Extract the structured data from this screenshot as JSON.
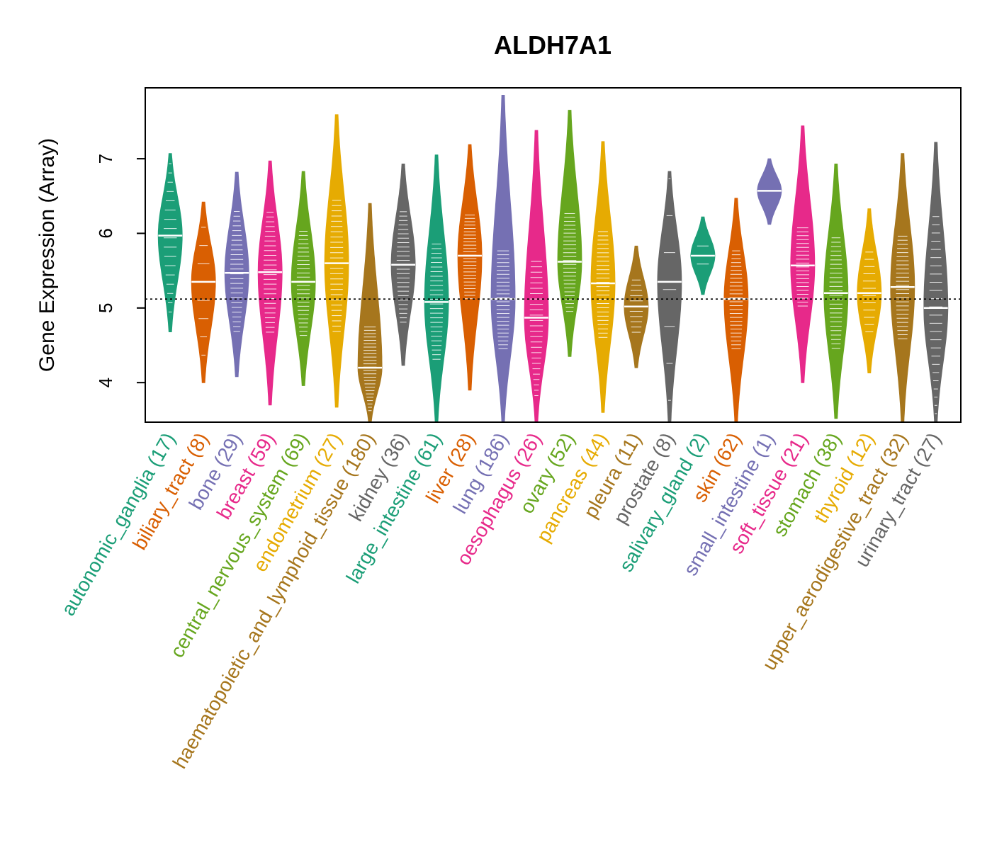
{
  "chart_data": {
    "type": "violin",
    "title": "ALDH7A1",
    "ylabel": "Gene Expression (Array)",
    "xlabel": "",
    "ylim": [
      3.47,
      7.95
    ],
    "yticks": [
      4,
      5,
      6,
      7
    ],
    "reference_line": 5.12,
    "grid": false,
    "categories": [
      {
        "name": "autonomic_ganglia",
        "n": 17,
        "color": "#1B9E77",
        "median": 5.97,
        "min": 4.68,
        "max": 7.07,
        "q1": 5.46,
        "q3": 6.42
      },
      {
        "name": "biliary_tract",
        "n": 8,
        "color": "#D95F02",
        "median": 5.35,
        "min": 4.0,
        "max": 6.42,
        "q1": 4.78,
        "q3": 5.67
      },
      {
        "name": "bone",
        "n": 29,
        "color": "#7570B3",
        "median": 5.47,
        "min": 4.08,
        "max": 6.82,
        "q1": 5.11,
        "q3": 5.87
      },
      {
        "name": "breast",
        "n": 59,
        "color": "#E7298A",
        "median": 5.48,
        "min": 3.7,
        "max": 6.97,
        "q1": 5.1,
        "q3": 5.86
      },
      {
        "name": "central_nervous_system",
        "n": 69,
        "color": "#66A61E",
        "median": 5.35,
        "min": 3.96,
        "max": 6.83,
        "q1": 5.0,
        "q3": 5.66
      },
      {
        "name": "endometrium",
        "n": 27,
        "color": "#E6AB02",
        "median": 5.6,
        "min": 3.67,
        "max": 7.59,
        "q1": 5.15,
        "q3": 5.98
      },
      {
        "name": "haematopoietic_and_lymphoid_tissue",
        "n": 180,
        "color": "#A6761D",
        "median": 4.2,
        "min": 3.47,
        "max": 6.4,
        "q1": 3.92,
        "q3": 4.45
      },
      {
        "name": "kidney",
        "n": 36,
        "color": "#666666",
        "median": 5.58,
        "min": 4.23,
        "max": 6.93,
        "q1": 5.2,
        "q3": 5.9
      },
      {
        "name": "large_intestine",
        "n": 61,
        "color": "#1B9E77",
        "median": 5.08,
        "min": 3.47,
        "max": 7.05,
        "q1": 4.72,
        "q3": 5.45
      },
      {
        "name": "liver",
        "n": 28,
        "color": "#D95F02",
        "median": 5.7,
        "min": 3.9,
        "max": 7.19,
        "q1": 5.42,
        "q3": 5.95
      },
      {
        "name": "lung",
        "n": 186,
        "color": "#7570B3",
        "median": 5.12,
        "min": 3.47,
        "max": 7.85,
        "q1": 4.8,
        "q3": 5.42
      },
      {
        "name": "oesophagus",
        "n": 26,
        "color": "#E7298A",
        "median": 4.87,
        "min": 3.47,
        "max": 7.38,
        "q1": 4.3,
        "q3": 5.15
      },
      {
        "name": "ovary",
        "n": 52,
        "color": "#66A61E",
        "median": 5.62,
        "min": 4.35,
        "max": 7.65,
        "q1": 5.3,
        "q3": 5.92
      },
      {
        "name": "pancreas",
        "n": 44,
        "color": "#E6AB02",
        "median": 5.33,
        "min": 3.6,
        "max": 7.23,
        "q1": 4.98,
        "q3": 5.65
      },
      {
        "name": "pleura",
        "n": 11,
        "color": "#A6761D",
        "median": 5.02,
        "min": 4.2,
        "max": 5.83,
        "q1": 4.85,
        "q3": 5.2
      },
      {
        "name": "prostate",
        "n": 8,
        "color": "#666666",
        "median": 5.35,
        "min": 3.47,
        "max": 6.83,
        "q1": 4.1,
        "q3": 5.9
      },
      {
        "name": "salivary_gland",
        "n": 2,
        "color": "#1B9E77",
        "median": 5.7,
        "min": 5.18,
        "max": 6.22,
        "q1": 5.6,
        "q3": 5.82
      },
      {
        "name": "skin",
        "n": 62,
        "color": "#D95F02",
        "median": 5.12,
        "min": 3.47,
        "max": 6.47,
        "q1": 4.8,
        "q3": 5.42
      },
      {
        "name": "small_intestine",
        "n": 1,
        "color": "#7570B3",
        "median": 6.57,
        "min": 6.12,
        "max": 7.0,
        "q1": 6.57,
        "q3": 6.57
      },
      {
        "name": "soft_tissue",
        "n": 21,
        "color": "#E7298A",
        "median": 5.57,
        "min": 4.0,
        "max": 7.44,
        "q1": 5.3,
        "q3": 5.8
      },
      {
        "name": "stomach",
        "n": 38,
        "color": "#66A61E",
        "median": 5.2,
        "min": 3.52,
        "max": 6.93,
        "q1": 4.85,
        "q3": 5.55
      },
      {
        "name": "thyroid",
        "n": 12,
        "color": "#E6AB02",
        "median": 5.2,
        "min": 4.13,
        "max": 6.33,
        "q1": 4.95,
        "q3": 5.48
      },
      {
        "name": "upper_aerodigestive_tract",
        "n": 32,
        "color": "#A6761D",
        "median": 5.28,
        "min": 3.47,
        "max": 7.07,
        "q1": 4.95,
        "q3": 5.6
      },
      {
        "name": "urinary_tract",
        "n": 27,
        "color": "#666666",
        "median": 5.0,
        "min": 3.47,
        "max": 7.22,
        "q1": 4.2,
        "q3": 5.5
      }
    ]
  }
}
